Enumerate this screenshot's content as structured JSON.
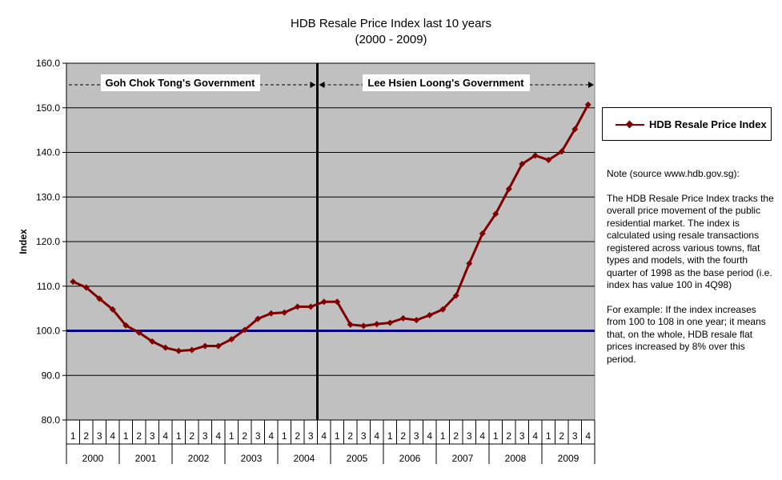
{
  "title_line1": "HDB Resale Price Index last 10 years",
  "title_line2": "(2000 - 2009)",
  "legend_label": "HDB Resale Price Index",
  "note_head": "Note (source www.hdb.gov.sg):",
  "note_p1": "The HDB Resale Price Index tracks the overall price movement of the public residential market. The index is calculated using resale transactions registered across various towns, flat types and models, with the fourth quarter of 1998 as the base period (i.e. index has value 100 in 4Q98)",
  "note_p2": "For example: If the index increases from 100 to 108 in one year; it means that, on the whole, HDB resale flat prices increased by 8% over this period.",
  "colors": {
    "series": "#800000",
    "baseline": "#000080",
    "plot_bg": "#c0c0c0",
    "divider": "#000000"
  },
  "chart_data": {
    "type": "line",
    "ylabel": "Index",
    "ylim": [
      80,
      160
    ],
    "yticks": [
      "80.0",
      "90.0",
      "100.0",
      "110.0",
      "120.0",
      "130.0",
      "140.0",
      "150.0",
      "160.0"
    ],
    "quarter_labels": [
      "1",
      "2",
      "3",
      "4"
    ],
    "years": [
      "2000",
      "2001",
      "2002",
      "2003",
      "2004",
      "2005",
      "2006",
      "2007",
      "2008",
      "2009"
    ],
    "grid": true,
    "legend_position": "right",
    "baseline_value": 100,
    "divider_after": "2004 Q3",
    "annotations": {
      "left": "Goh Chok Tong's Government",
      "right": "Lee Hsien Loong's Government"
    },
    "series": [
      {
        "name": "HDB Resale Price Index",
        "values": [
          111.0,
          109.7,
          107.2,
          104.8,
          101.2,
          99.6,
          97.6,
          96.2,
          95.5,
          95.7,
          96.6,
          96.6,
          98.1,
          100.2,
          102.7,
          103.9,
          104.1,
          105.4,
          105.4,
          106.5,
          106.5,
          101.4,
          101.1,
          101.5,
          101.8,
          102.8,
          102.4,
          103.5,
          104.8,
          107.9,
          115.1,
          121.8,
          126.2,
          131.8,
          137.4,
          139.3,
          138.3,
          140.2,
          145.2,
          150.7
        ]
      }
    ]
  }
}
